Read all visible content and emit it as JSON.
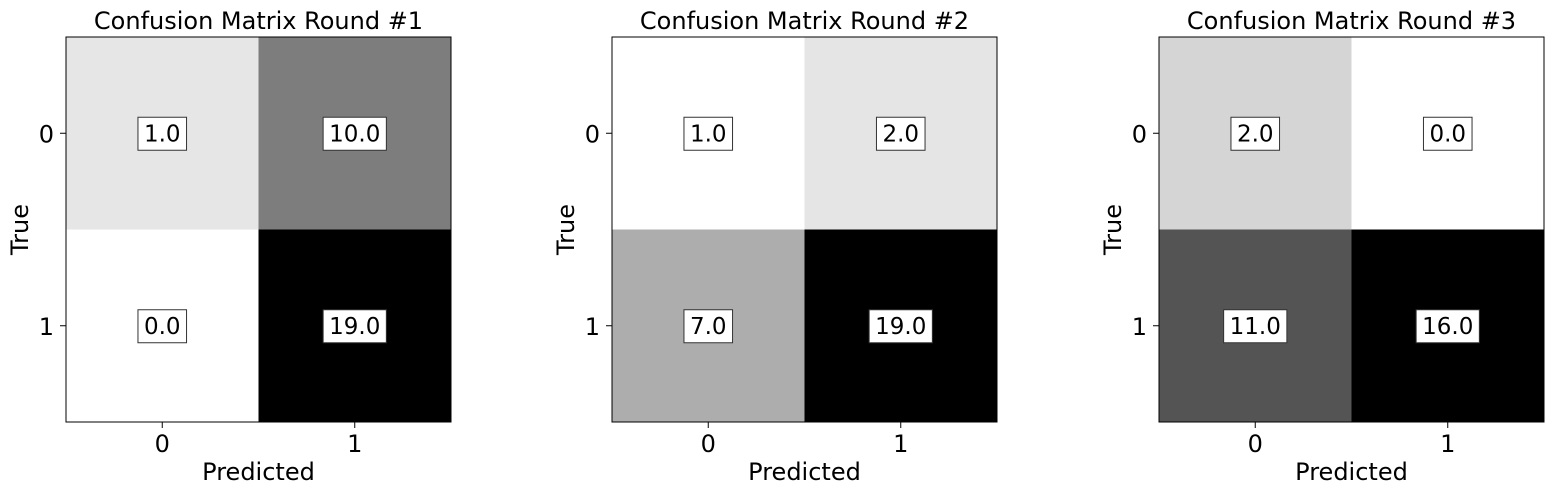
{
  "chart_data": [
    {
      "type": "heatmap",
      "title": "Confusion Matrix Round #1",
      "xlabel": "Predicted",
      "ylabel": "True",
      "x_ticks": [
        "0",
        "1"
      ],
      "y_ticks": [
        "0",
        "1"
      ],
      "colormap": "Greys",
      "values": [
        [
          1.0,
          10.0
        ],
        [
          0.0,
          19.0
        ]
      ],
      "labels": [
        [
          "1.0",
          "10.0"
        ],
        [
          "0.0",
          "19.0"
        ]
      ]
    },
    {
      "type": "heatmap",
      "title": "Confusion Matrix Round #2",
      "xlabel": "Predicted",
      "ylabel": "True",
      "x_ticks": [
        "0",
        "1"
      ],
      "y_ticks": [
        "0",
        "1"
      ],
      "colormap": "Greys",
      "values": [
        [
          1.0,
          2.0
        ],
        [
          7.0,
          19.0
        ]
      ],
      "labels": [
        [
          "1.0",
          "2.0"
        ],
        [
          "7.0",
          "19.0"
        ]
      ]
    },
    {
      "type": "heatmap",
      "title": "Confusion Matrix Round #3",
      "xlabel": "Predicted",
      "ylabel": "True",
      "x_ticks": [
        "0",
        "1"
      ],
      "y_ticks": [
        "0",
        "1"
      ],
      "colormap": "Greys",
      "values": [
        [
          2.0,
          0.0
        ],
        [
          11.0,
          16.0
        ]
      ],
      "labels": [
        [
          "2.0",
          "0.0"
        ],
        [
          "11.0",
          "16.0"
        ]
      ]
    }
  ]
}
